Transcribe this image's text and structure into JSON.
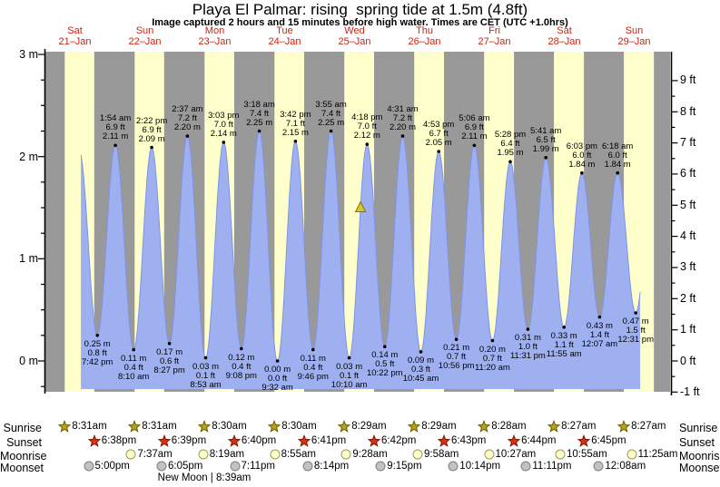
{
  "title": "Playa El Palmar: rising  spring tide at 1.5m (4.8ft)",
  "subtitle": "Image captured 2 hours and 15 minutes before high water. Times are CET (UTC +1.0hrs)",
  "axes": {
    "left_ticks": [
      "3 m",
      "2 m",
      "1 m",
      "0 m"
    ],
    "right_ticks": [
      "9 ft",
      "8 ft",
      "7 ft",
      "6 ft",
      "5 ft",
      "4 ft",
      "3 ft",
      "2 ft",
      "1 ft",
      "0 ft",
      "-1 ft"
    ]
  },
  "days": [
    {
      "label": "Sat",
      "date": "21–Jan"
    },
    {
      "label": "Sun",
      "date": "22–Jan"
    },
    {
      "label": "Mon",
      "date": "23–Jan"
    },
    {
      "label": "Tue",
      "date": "24–Jan"
    },
    {
      "label": "Wed",
      "date": "25–Jan"
    },
    {
      "label": "Thu",
      "date": "26–Jan"
    },
    {
      "label": "Fri",
      "date": "27–Jan"
    },
    {
      "label": "Sat",
      "date": "28–Jan"
    },
    {
      "label": "Sun",
      "date": "29–Jan"
    }
  ],
  "chart_data": {
    "type": "area",
    "title": "Playa El Palmar: rising  spring tide at 1.5m (4.8ft)",
    "ylabel_left": "m",
    "ylabel_right": "ft",
    "ylim_m": [
      -0.3,
      3.0
    ],
    "high_tides": [
      {
        "day": 1,
        "time": "1:54 am",
        "ft": "6.9 ft",
        "m": "2.11 m",
        "height_m": 2.11
      },
      {
        "day": 1,
        "time": "2:22 pm",
        "ft": "6.9 ft",
        "m": "2.09 m",
        "height_m": 2.09
      },
      {
        "day": 2,
        "time": "2:37 am",
        "ft": "7.2 ft",
        "m": "2.20 m",
        "height_m": 2.2
      },
      {
        "day": 2,
        "time": "3:03 pm",
        "ft": "7.0 ft",
        "m": "2.14 m",
        "height_m": 2.14
      },
      {
        "day": 3,
        "time": "3:18 am",
        "ft": "7.4 ft",
        "m": "2.25 m",
        "height_m": 2.25
      },
      {
        "day": 3,
        "time": "3:42 pm",
        "ft": "7.1 ft",
        "m": "2.15 m",
        "height_m": 2.15
      },
      {
        "day": 4,
        "time": "3:55 am",
        "ft": "7.4 ft",
        "m": "2.25 m",
        "height_m": 2.25
      },
      {
        "day": 4,
        "time": "4:18 pm",
        "ft": "7.0 ft",
        "m": "2.12 m",
        "height_m": 2.12
      },
      {
        "day": 5,
        "time": "4:31 am",
        "ft": "7.2 ft",
        "m": "2.20 m",
        "height_m": 2.2
      },
      {
        "day": 5,
        "time": "4:53 pm",
        "ft": "6.7 ft",
        "m": "2.05 m",
        "height_m": 2.05
      },
      {
        "day": 6,
        "time": "5:06 am",
        "ft": "6.9 ft",
        "m": "2.11 m",
        "height_m": 2.11
      },
      {
        "day": 6,
        "time": "5:28 pm",
        "ft": "6.4 ft",
        "m": "1.95 m",
        "height_m": 1.95
      },
      {
        "day": 7,
        "time": "5:41 am",
        "ft": "6.5 ft",
        "m": "1.99 m",
        "height_m": 1.99
      },
      {
        "day": 7,
        "time": "6:03 pm",
        "ft": "6.0 ft",
        "m": "1.84 m",
        "height_m": 1.84
      },
      {
        "day": 8,
        "time": "6:18 am",
        "ft": "6.0 ft",
        "m": "1.84 m",
        "height_m": 1.84
      }
    ],
    "low_tides": [
      {
        "day": 0,
        "time": "7:42 pm",
        "ft": "0.8 ft",
        "m": "0.25 m",
        "height_m": 0.25
      },
      {
        "day": 1,
        "time": "8:10 am",
        "ft": "0.4 ft",
        "m": "0.11 m",
        "height_m": 0.11
      },
      {
        "day": 1,
        "time": "8:27 pm",
        "ft": "0.6 ft",
        "m": "0.17 m",
        "height_m": 0.17
      },
      {
        "day": 2,
        "time": "8:53 am",
        "ft": "0.1 ft",
        "m": "0.03 m",
        "height_m": 0.03
      },
      {
        "day": 2,
        "time": "9:08 pm",
        "ft": "0.4 ft",
        "m": "0.12 m",
        "height_m": 0.12
      },
      {
        "day": 3,
        "time": "9:32 am",
        "ft": "0.0 ft",
        "m": "0.00 m",
        "height_m": 0.0
      },
      {
        "day": 3,
        "time": "9:46 pm",
        "ft": "0.4 ft",
        "m": "0.11 m",
        "height_m": 0.11
      },
      {
        "day": 4,
        "time": "10:10 am",
        "ft": "0.1 ft",
        "m": "0.03 m",
        "height_m": 0.03
      },
      {
        "day": 4,
        "time": "10:22 pm",
        "ft": "0.5 ft",
        "m": "0.14 m",
        "height_m": 0.14
      },
      {
        "day": 5,
        "time": "10:45 am",
        "ft": "0.3 ft",
        "m": "0.09 m",
        "height_m": 0.09
      },
      {
        "day": 5,
        "time": "10:56 pm",
        "ft": "0.7 ft",
        "m": "0.21 m",
        "height_m": 0.21
      },
      {
        "day": 6,
        "time": "11:20 am",
        "ft": "0.7 ft",
        "m": "0.20 m",
        "height_m": 0.2
      },
      {
        "day": 6,
        "time": "11:31 pm",
        "ft": "1.0 ft",
        "m": "0.31 m",
        "height_m": 0.31
      },
      {
        "day": 7,
        "time": "11:55 am",
        "ft": "1.1 ft",
        "m": "0.33 m",
        "height_m": 0.33
      },
      {
        "day": 8,
        "time": "12:07 am",
        "ft": "1.4 ft",
        "m": "0.43 m",
        "height_m": 0.43
      },
      {
        "day": 8,
        "time": "12:31 pm",
        "ft": "1.5 ft",
        "m": "0.47 m",
        "height_m": 0.47
      }
    ],
    "current_marker": {
      "day": 4,
      "high_time": "4:18 pm",
      "offset_hours_before_high": 2.25,
      "height_m": 1.5
    }
  },
  "astro": {
    "row_labels": [
      "Sunrise",
      "Sunset",
      "Moonrise",
      "Moonset"
    ],
    "sunrise": [
      {
        "day": 0,
        "time": "8:31am"
      },
      {
        "day": 1,
        "time": "8:31am"
      },
      {
        "day": 2,
        "time": "8:30am"
      },
      {
        "day": 3,
        "time": "8:30am"
      },
      {
        "day": 4,
        "time": "8:29am"
      },
      {
        "day": 5,
        "time": "8:29am"
      },
      {
        "day": 6,
        "time": "8:28am"
      },
      {
        "day": 7,
        "time": "8:27am"
      },
      {
        "day": 8,
        "time": "8:27am"
      }
    ],
    "sunset": [
      {
        "day": 0,
        "time": "6:38pm"
      },
      {
        "day": 1,
        "time": "6:39pm"
      },
      {
        "day": 2,
        "time": "6:40pm"
      },
      {
        "day": 3,
        "time": "6:41pm"
      },
      {
        "day": 4,
        "time": "6:42pm"
      },
      {
        "day": 5,
        "time": "6:43pm"
      },
      {
        "day": 6,
        "time": "6:44pm"
      },
      {
        "day": 7,
        "time": "6:45pm"
      }
    ],
    "moonrise": [
      {
        "day": 1,
        "time": "7:37am"
      },
      {
        "day": 2,
        "time": "8:19am"
      },
      {
        "day": 3,
        "time": "8:55am"
      },
      {
        "day": 4,
        "time": "9:28am"
      },
      {
        "day": 5,
        "time": "9:58am"
      },
      {
        "day": 6,
        "time": "10:27am"
      },
      {
        "day": 7,
        "time": "10:55am"
      },
      {
        "day": 8,
        "time": "11:25am"
      }
    ],
    "moonset": [
      {
        "day": 0,
        "time": "5:00pm"
      },
      {
        "day": 1,
        "time": "6:05pm"
      },
      {
        "day": 2,
        "time": "7:11pm"
      },
      {
        "day": 3,
        "time": "8:14pm"
      },
      {
        "day": 4,
        "time": "9:15pm"
      },
      {
        "day": 5,
        "time": "10:14pm"
      },
      {
        "day": 6,
        "time": "11:11pm"
      },
      {
        "day": 8,
        "time": "12:08am"
      }
    ],
    "new_moon": "New Moon | 8:39am"
  },
  "colors": {
    "night_band": "#999999",
    "day_band": "#ffffcc",
    "tide_fill": "#9fb0f0",
    "tide_edge": "#7f93e6",
    "day_label": "#cc2211",
    "sunrise_star": "#b3a41e",
    "sunrise_star_edge": "#6d5e00",
    "sunset_star": "#dd2e17",
    "sunset_star_edge": "#7d1a00",
    "moonrise_disc": "#ffffcc",
    "moonrise_disc_edge": "#99995c",
    "moonset_disc": "#c2c2c2",
    "moonset_disc_edge": "#7f7f7f",
    "marker_fill": "#d9c53a",
    "marker_edge": "#837300"
  }
}
